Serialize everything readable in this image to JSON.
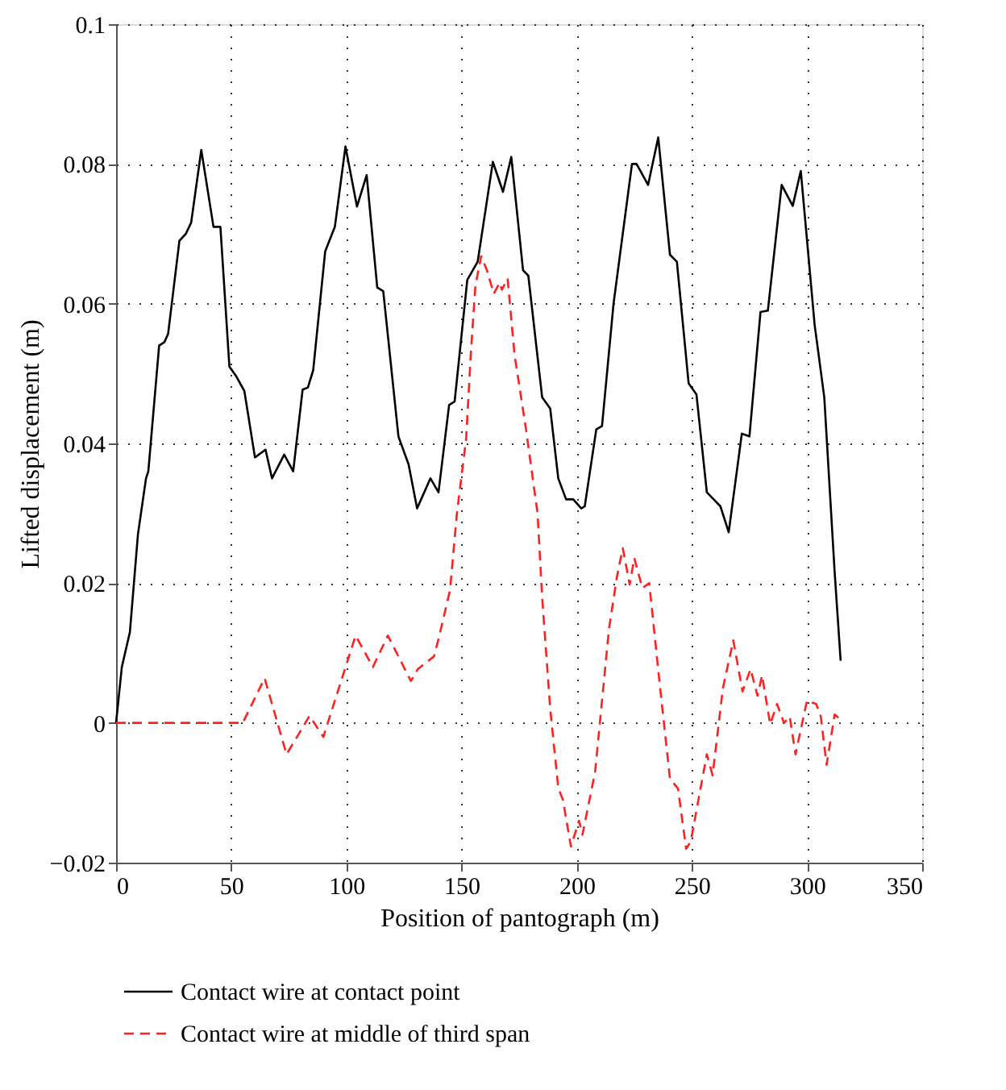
{
  "chart_data": {
    "type": "line",
    "xlabel": "Position of pantograph (m)",
    "ylabel": "Lifted displacement (m)",
    "xlim": [
      0,
      350
    ],
    "xticks": [
      0,
      50,
      100,
      150,
      200,
      250,
      300,
      350
    ],
    "ylim": [
      -0.02,
      0.1
    ],
    "yticks": [
      {
        "value": -0.02,
        "label": "−0.02"
      },
      0,
      0.02,
      0.04,
      0.06,
      0.08,
      0.1
    ],
    "grid": true,
    "legend": "bottom",
    "marker": "none",
    "series": [
      {
        "name": "Contact wire at contact point",
        "color": "#000000",
        "line_style": "solid",
        "x": [
          0,
          2.5,
          6,
          9.5,
          13,
          14,
          18.7,
          21,
          22.6,
          27.5,
          30.3,
          32.6,
          37,
          42.3,
          45.3,
          49.2,
          52,
          55.7,
          60.3,
          64.9,
          67.7,
          73,
          76.9,
          81,
          83.3,
          85.6,
          90.8,
          95,
          99.6,
          104.6,
          108.8,
          113.4,
          116,
          122.6,
          127,
          130.7,
          136.5,
          140,
          144.6,
          147,
          152.5,
          157,
          163.6,
          168,
          171.6,
          176.7,
          179,
          185,
          188.5,
          192,
          195.4,
          198.5,
          202,
          203.5,
          208.5,
          211,
          216,
          224,
          226,
          231,
          235.4,
          240.5,
          243.5,
          248.6,
          252,
          256.5,
          262.4,
          266,
          271.7,
          275,
          279.8,
          283,
          289,
          293.8,
          297.3,
          303.3,
          307.5,
          312,
          314.6
        ],
        "values": [
          0,
          0.008,
          0.013,
          0.027,
          0.035,
          0.036,
          0.054,
          0.0545,
          0.0557,
          0.069,
          0.07,
          0.0716,
          0.082,
          0.071,
          0.071,
          0.051,
          0.0497,
          0.0475,
          0.038,
          0.0391,
          0.035,
          0.0384,
          0.036,
          0.0477,
          0.048,
          0.0505,
          0.0675,
          0.071,
          0.0825,
          0.0739,
          0.0784,
          0.0623,
          0.0618,
          0.041,
          0.037,
          0.0307,
          0.035,
          0.033,
          0.0455,
          0.046,
          0.0634,
          0.066,
          0.0803,
          0.076,
          0.081,
          0.0648,
          0.064,
          0.0466,
          0.045,
          0.035,
          0.032,
          0.032,
          0.0307,
          0.031,
          0.042,
          0.0425,
          0.06,
          0.08,
          0.08,
          0.077,
          0.0838,
          0.067,
          0.066,
          0.0486,
          0.047,
          0.033,
          0.031,
          0.0273,
          0.0414,
          0.041,
          0.0588,
          0.059,
          0.077,
          0.074,
          0.079,
          0.057,
          0.0466,
          0.0216,
          0.0089
        ]
      },
      {
        "name": "Contact wire at middle of third span",
        "color": "#ff2020",
        "line_style": "dashed",
        "x": [
          0,
          55,
          64.5,
          74,
          84,
          90,
          104,
          111.5,
          118,
          128,
          131,
          138,
          140,
          145,
          148,
          152,
          154,
          156,
          158.5,
          161,
          164,
          166.5,
          167.5,
          170,
          173,
          178,
          183,
          185,
          188.5,
          192,
          194,
          197.5,
          201,
          202.5,
          208,
          214,
          217.5,
          220,
          223,
          225,
          228.5,
          231.5,
          236,
          240.5,
          244,
          247.5,
          249.5,
          256.5,
          259,
          263.5,
          268,
          272,
          275.5,
          278.5,
          280.5,
          284,
          287,
          290,
          292.5,
          295,
          300,
          304,
          306,
          308.5,
          312,
          314.5
        ],
        "values": [
          0,
          0,
          0.0064,
          -0.0045,
          0.001,
          -0.002,
          0.0125,
          0.008,
          0.0125,
          0.006,
          0.0077,
          0.0095,
          0.012,
          0.019,
          0.03,
          0.0407,
          0.0527,
          0.0625,
          0.0668,
          0.0648,
          0.0614,
          0.063,
          0.062,
          0.0636,
          0.0527,
          0.042,
          0.03,
          0.018,
          0.002,
          -0.0093,
          -0.011,
          -0.0177,
          -0.014,
          -0.016,
          -0.007,
          0.0134,
          0.021,
          0.025,
          0.0198,
          0.0236,
          0.0193,
          0.02,
          0.0057,
          -0.008,
          -0.0094,
          -0.018,
          -0.017,
          -0.0045,
          -0.0075,
          0.005,
          0.0118,
          0.0045,
          0.0077,
          0.0039,
          0.0068,
          -0.0002,
          0.0027,
          0,
          0.0009,
          -0.0045,
          0.0032,
          0.0027,
          0.0009,
          -0.006,
          0.0012,
          0.0005
        ]
      }
    ]
  }
}
